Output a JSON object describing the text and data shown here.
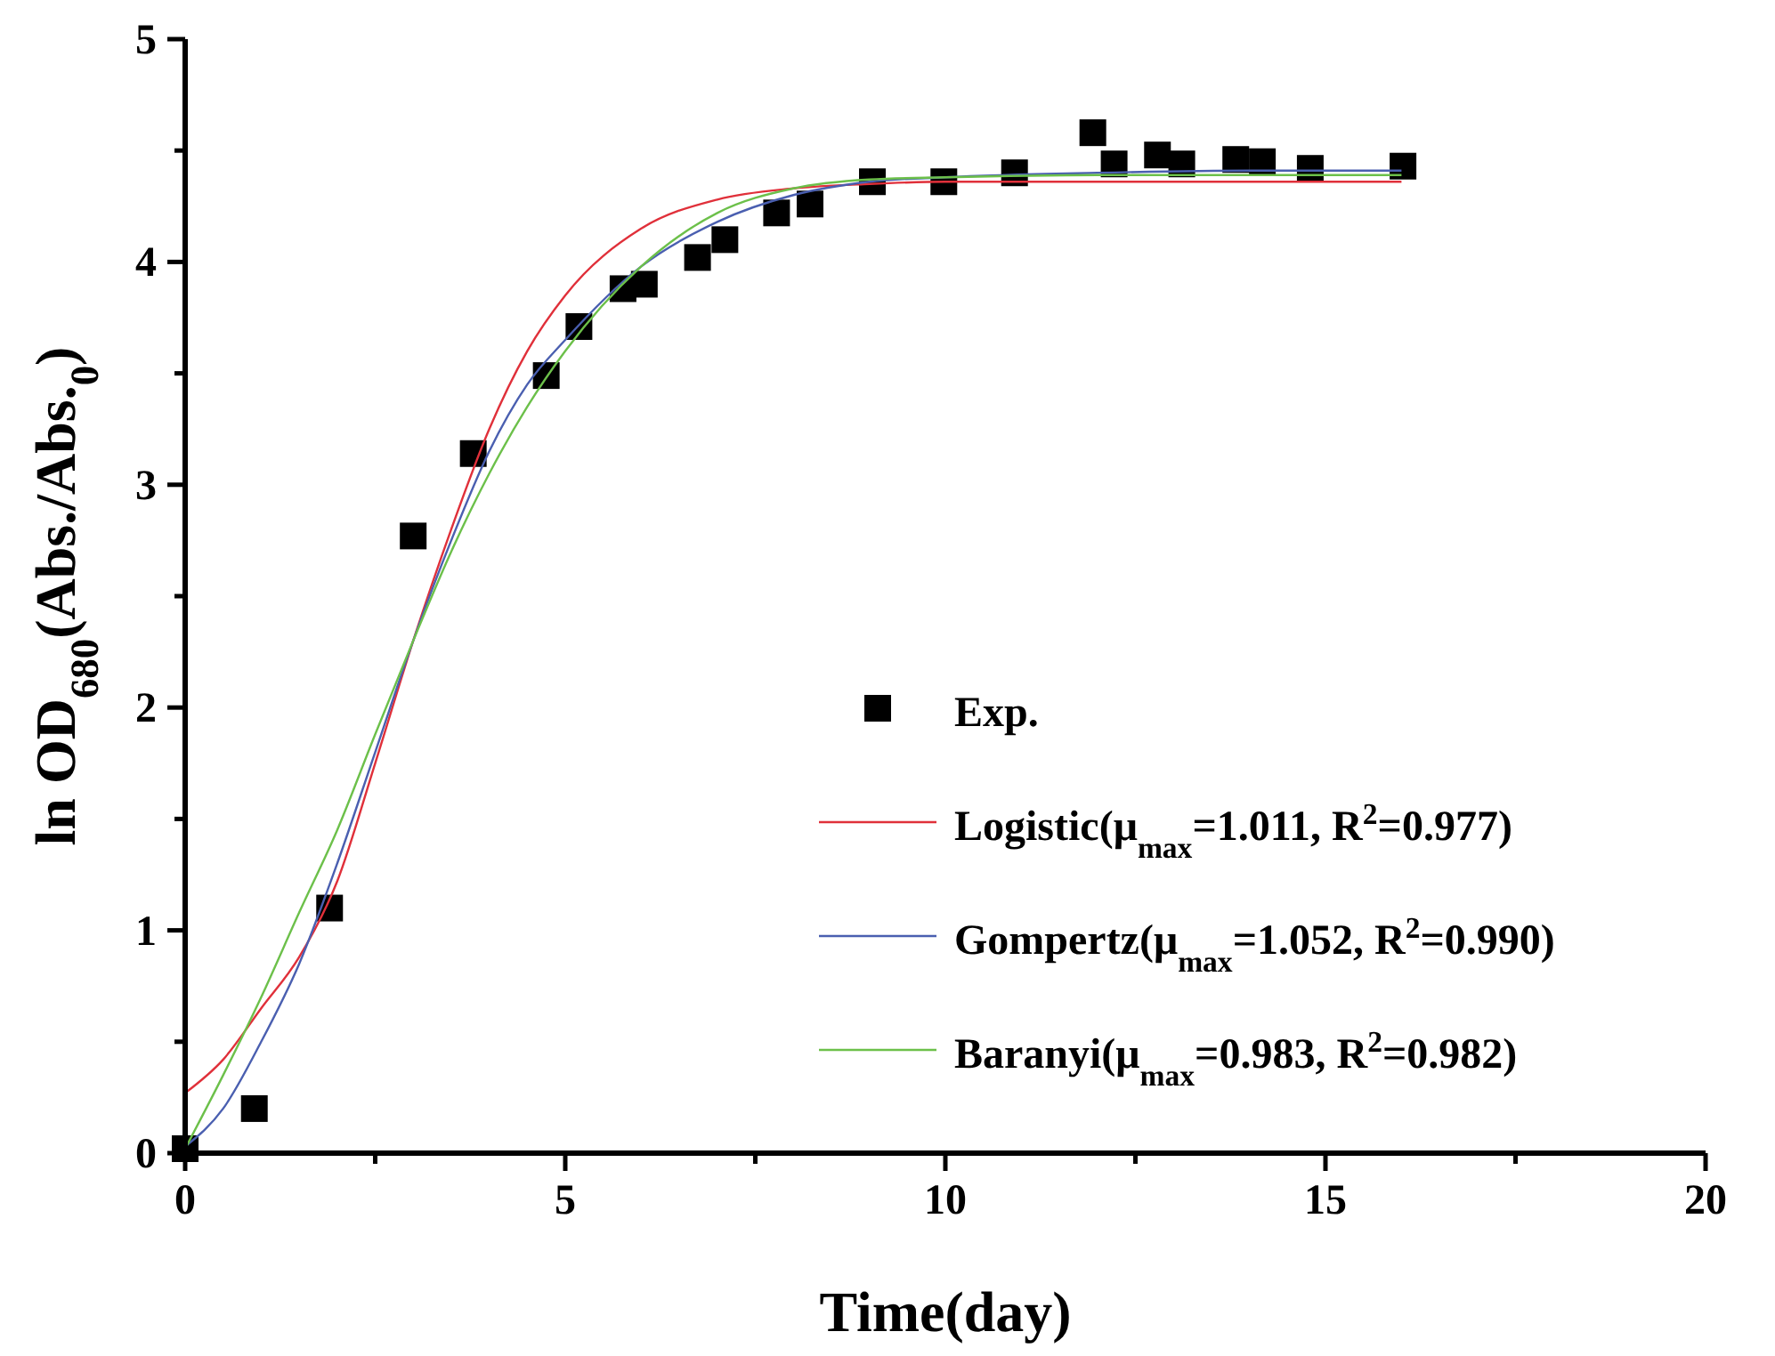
{
  "chart_data": {
    "type": "scatter",
    "xlabel": "Time(day)",
    "ylabel": "ln OD$_{680}$(Abs./Abs.$_{0}$)",
    "xlim": [
      0,
      20
    ],
    "ylim": [
      0,
      5
    ],
    "xticks": [
      0,
      {
        "value": 2.5,
        "label": null
      },
      5,
      {
        "value": 7.5,
        "label": null
      },
      10,
      {
        "value": 12.5,
        "label": null
      },
      15,
      {
        "value": 17.5,
        "label": null
      },
      20
    ],
    "yticks": [
      0,
      {
        "value": 0.5,
        "label": null
      },
      1,
      {
        "value": 1.5,
        "label": null
      },
      2,
      {
        "value": 2.5,
        "label": null
      },
      3,
      {
        "value": 3.5,
        "label": null
      },
      4,
      {
        "value": 4.5,
        "label": null
      },
      5
    ],
    "grid": false,
    "legend": "bottom right",
    "series": [
      {
        "name": "Exp.",
        "marker": "square",
        "color": "#000000",
        "x": [
          0,
          0.91,
          1.9,
          3.0,
          3.79,
          4.75,
          5.18,
          5.76,
          6.04,
          6.74,
          7.1,
          7.78,
          8.22,
          9.04,
          9.98,
          10.91,
          11.94,
          12.22,
          12.79,
          13.11,
          13.82,
          14.17,
          14.8,
          16.02
        ],
        "values": [
          0.02,
          0.2,
          1.1,
          2.77,
          3.14,
          3.49,
          3.71,
          3.88,
          3.9,
          4.02,
          4.1,
          4.22,
          4.26,
          4.36,
          4.36,
          4.4,
          4.58,
          4.44,
          4.48,
          4.44,
          4.46,
          4.45,
          4.42,
          4.43
        ]
      },
      {
        "name": "Logistic(μ$_{max}$=1.011, R$^{2}$=0.977)",
        "type": "line",
        "color": "#e0303a",
        "x": [
          0,
          0.5,
          1,
          1.5,
          2,
          2.5,
          3,
          3.5,
          4,
          4.5,
          5,
          6,
          7,
          8,
          9,
          10,
          12,
          14,
          16
        ],
        "values": [
          0.27,
          0.42,
          0.65,
          0.88,
          1.22,
          1.75,
          2.3,
          2.8,
          3.25,
          3.6,
          3.85,
          4.15,
          4.28,
          4.33,
          4.35,
          4.36,
          4.36,
          4.36,
          4.36
        ]
      },
      {
        "name": "Gompertz(μ$_{max}$=1.052, R$^{2}$=0.990)",
        "type": "line",
        "color": "#4a5fb0",
        "x": [
          0,
          0.5,
          1,
          1.5,
          2,
          2.5,
          3,
          3.5,
          4,
          4.5,
          5,
          6,
          7,
          8,
          9,
          10,
          12,
          14,
          16
        ],
        "values": [
          0.03,
          0.2,
          0.5,
          0.85,
          1.3,
          1.8,
          2.3,
          2.75,
          3.15,
          3.45,
          3.65,
          3.98,
          4.18,
          4.3,
          4.36,
          4.38,
          4.4,
          4.41,
          4.41
        ]
      },
      {
        "name": "Baranyi(μ$_{max}$=0.983, R$^{2}$=0.982)",
        "type": "line",
        "color": "#6cc04a",
        "x": [
          0,
          0.5,
          1,
          1.5,
          2,
          2.5,
          3,
          3.5,
          4,
          4.5,
          5,
          6,
          7,
          8,
          9,
          10,
          12,
          14,
          16
        ],
        "values": [
          0.02,
          0.35,
          0.7,
          1.08,
          1.45,
          1.88,
          2.3,
          2.7,
          3.05,
          3.35,
          3.6,
          3.98,
          4.22,
          4.33,
          4.37,
          4.38,
          4.39,
          4.39,
          4.39
        ]
      }
    ]
  }
}
